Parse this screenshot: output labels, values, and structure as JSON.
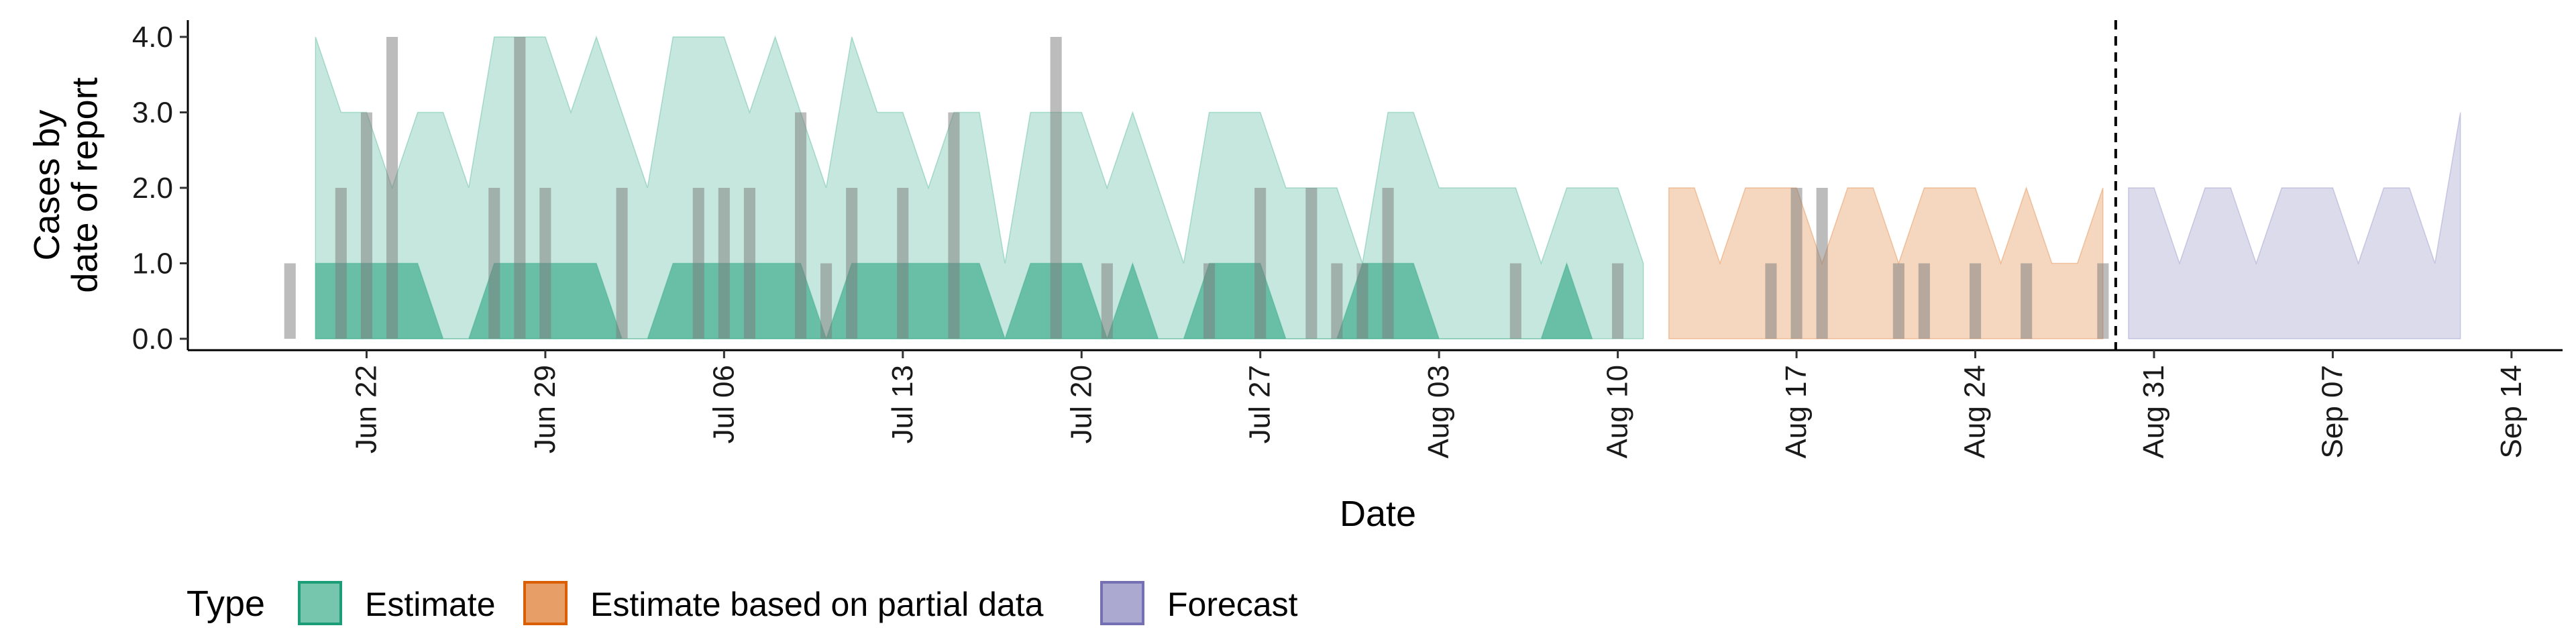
{
  "chart_data": {
    "type": "area",
    "xlabel": "Date",
    "ylabel_lines": [
      "Cases by",
      "date of report"
    ],
    "y_ticks": [
      "0.0",
      "1.0",
      "2.0",
      "3.0",
      "4.0"
    ],
    "ylim": [
      0,
      4
    ],
    "x_tick_labels": [
      "Jun 22",
      "Jun 29",
      "Jul 06",
      "Jul 13",
      "Jul 20",
      "Jul 27",
      "Aug 03",
      "Aug 10",
      "Aug 17",
      "Aug 24",
      "Aug 31",
      "Sep 07",
      "Sep 14"
    ],
    "x_tick_dates": [
      "2020-06-22",
      "2020-06-29",
      "2020-07-06",
      "2020-07-13",
      "2020-07-20",
      "2020-07-27",
      "2020-08-03",
      "2020-08-10",
      "2020-08-17",
      "2020-08-24",
      "2020-08-31",
      "2020-09-07",
      "2020-09-14"
    ],
    "xlim": [
      "2020-06-15",
      "2020-09-16"
    ],
    "forecast_start": "2020-08-29",
    "legend": {
      "title": "Type",
      "items": [
        {
          "label": "Estimate",
          "color": "#1b9e77"
        },
        {
          "label": "Estimate based on partial data",
          "color": "#d95f02"
        },
        {
          "label": "Forecast",
          "color": "#7570b3"
        }
      ]
    },
    "colors": {
      "estimate": "#1b9e77",
      "partial": "#d95f02",
      "forecast": "#7570b3",
      "bars": "#7a7a7a"
    },
    "observed_dates": [
      "2020-06-19",
      "2020-06-20",
      "2020-06-21",
      "2020-06-22",
      "2020-06-23",
      "2020-06-24",
      "2020-06-25",
      "2020-06-26",
      "2020-06-27",
      "2020-06-28",
      "2020-06-29",
      "2020-06-30",
      "2020-07-01",
      "2020-07-02",
      "2020-07-03",
      "2020-07-04",
      "2020-07-05",
      "2020-07-06",
      "2020-07-07",
      "2020-07-08",
      "2020-07-09",
      "2020-07-10",
      "2020-07-11",
      "2020-07-12",
      "2020-07-13",
      "2020-07-14",
      "2020-07-15",
      "2020-07-16",
      "2020-07-17",
      "2020-07-18",
      "2020-07-19",
      "2020-07-20",
      "2020-07-21",
      "2020-07-22",
      "2020-07-23",
      "2020-07-24",
      "2020-07-25",
      "2020-07-26",
      "2020-07-27",
      "2020-07-28",
      "2020-07-29",
      "2020-07-30",
      "2020-07-31",
      "2020-08-01",
      "2020-08-02",
      "2020-08-03",
      "2020-08-04",
      "2020-08-05",
      "2020-08-06",
      "2020-08-07",
      "2020-08-08",
      "2020-08-09",
      "2020-08-10",
      "2020-08-11",
      "2020-08-12",
      "2020-08-13",
      "2020-08-14",
      "2020-08-15",
      "2020-08-16",
      "2020-08-17",
      "2020-08-18",
      "2020-08-19",
      "2020-08-20",
      "2020-08-21",
      "2020-08-22",
      "2020-08-23",
      "2020-08-24",
      "2020-08-25",
      "2020-08-26",
      "2020-08-27",
      "2020-08-28",
      "2020-08-29"
    ],
    "observed_cases": [
      1,
      0,
      2,
      3,
      4,
      0,
      0,
      0,
      2,
      4,
      2,
      0,
      0,
      2,
      0,
      0,
      2,
      2,
      2,
      0,
      3,
      1,
      2,
      0,
      2,
      0,
      3,
      0,
      0,
      0,
      4,
      0,
      1,
      0,
      0,
      0,
      1,
      0,
      2,
      0,
      2,
      1,
      1,
      2,
      0,
      0,
      0,
      0,
      1,
      0,
      0,
      0,
      1,
      0,
      0,
      0,
      0,
      0,
      1,
      2,
      2,
      0,
      0,
      1,
      1,
      0,
      1,
      0,
      1,
      0,
      0,
      1
    ],
    "series": [
      {
        "name": "Estimate",
        "type_key": "estimate",
        "band": "outer",
        "x": [
          "2020-06-20",
          "2020-06-21",
          "2020-06-22",
          "2020-06-23",
          "2020-06-24",
          "2020-06-25",
          "2020-06-26",
          "2020-06-27",
          "2020-06-28",
          "2020-06-29",
          "2020-06-30",
          "2020-07-01",
          "2020-07-02",
          "2020-07-03",
          "2020-07-04",
          "2020-07-05",
          "2020-07-06",
          "2020-07-07",
          "2020-07-08",
          "2020-07-09",
          "2020-07-10",
          "2020-07-11",
          "2020-07-12",
          "2020-07-13",
          "2020-07-14",
          "2020-07-15",
          "2020-07-16",
          "2020-07-17",
          "2020-07-18",
          "2020-07-19",
          "2020-07-20",
          "2020-07-21",
          "2020-07-22",
          "2020-07-23",
          "2020-07-24",
          "2020-07-25",
          "2020-07-26",
          "2020-07-27",
          "2020-07-28",
          "2020-07-29",
          "2020-07-30",
          "2020-07-31",
          "2020-08-01",
          "2020-08-02",
          "2020-08-03",
          "2020-08-04",
          "2020-08-05",
          "2020-08-06",
          "2020-08-07",
          "2020-08-08",
          "2020-08-09",
          "2020-08-10",
          "2020-08-11"
        ],
        "upper": [
          4,
          3,
          3,
          2,
          3,
          3,
          2,
          4,
          4,
          4,
          3,
          4,
          3,
          2,
          4,
          4,
          4,
          3,
          4,
          3,
          2,
          4,
          3,
          3,
          2,
          3,
          3,
          1,
          3,
          3,
          3,
          2,
          3,
          2,
          1,
          3,
          3,
          3,
          2,
          2,
          2,
          1,
          3,
          3,
          2,
          2,
          2,
          2,
          1,
          2,
          2,
          2,
          1
        ],
        "lower": [
          0,
          0,
          0,
          0,
          0,
          0,
          0,
          0,
          0,
          0,
          0,
          0,
          0,
          0,
          0,
          0,
          0,
          0,
          0,
          0,
          0,
          0,
          0,
          0,
          0,
          0,
          0,
          0,
          0,
          0,
          0,
          0,
          0,
          0,
          0,
          0,
          0,
          0,
          0,
          0,
          0,
          0,
          0,
          0,
          0,
          0,
          0,
          0,
          0,
          0,
          0,
          0,
          0
        ]
      },
      {
        "name": "Estimate",
        "type_key": "estimate",
        "band": "inner",
        "x": [
          "2020-06-20",
          "2020-06-21",
          "2020-06-22",
          "2020-06-23",
          "2020-06-24",
          "2020-06-25",
          "2020-06-26",
          "2020-06-27",
          "2020-06-28",
          "2020-06-29",
          "2020-06-30",
          "2020-07-01",
          "2020-07-02",
          "2020-07-03",
          "2020-07-04",
          "2020-07-05",
          "2020-07-06",
          "2020-07-07",
          "2020-07-08",
          "2020-07-09",
          "2020-07-10",
          "2020-07-11",
          "2020-07-12",
          "2020-07-13",
          "2020-07-14",
          "2020-07-15",
          "2020-07-16",
          "2020-07-17",
          "2020-07-18",
          "2020-07-19",
          "2020-07-20",
          "2020-07-21",
          "2020-07-22",
          "2020-07-23",
          "2020-07-24",
          "2020-07-25",
          "2020-07-26",
          "2020-07-27",
          "2020-07-28",
          "2020-07-29",
          "2020-07-30",
          "2020-07-31",
          "2020-08-01",
          "2020-08-02",
          "2020-08-03",
          "2020-08-04",
          "2020-08-05",
          "2020-08-06",
          "2020-08-07",
          "2020-08-08",
          "2020-08-09"
        ],
        "upper": [
          1,
          1,
          1,
          1,
          1,
          0,
          0,
          1,
          1,
          1,
          1,
          1,
          0,
          0,
          1,
          1,
          1,
          1,
          1,
          1,
          0,
          1,
          1,
          1,
          1,
          1,
          1,
          0,
          1,
          1,
          1,
          0,
          1,
          0,
          0,
          1,
          1,
          1,
          0,
          0,
          0,
          1,
          1,
          1,
          0,
          0,
          0,
          0,
          0,
          1,
          0
        ],
        "lower": [
          0,
          0,
          0,
          0,
          0,
          0,
          0,
          0,
          0,
          0,
          0,
          0,
          0,
          0,
          0,
          0,
          0,
          0,
          0,
          0,
          0,
          0,
          0,
          0,
          0,
          0,
          0,
          0,
          0,
          0,
          0,
          0,
          0,
          0,
          0,
          0,
          0,
          0,
          0,
          0,
          0,
          0,
          0,
          0,
          0,
          0,
          0,
          0,
          0,
          0,
          0
        ]
      },
      {
        "name": "Estimate based on partial data",
        "type_key": "partial",
        "band": "outer",
        "x": [
          "2020-08-12",
          "2020-08-13",
          "2020-08-14",
          "2020-08-15",
          "2020-08-16",
          "2020-08-17",
          "2020-08-18",
          "2020-08-19",
          "2020-08-20",
          "2020-08-21",
          "2020-08-22",
          "2020-08-23",
          "2020-08-24",
          "2020-08-25",
          "2020-08-26",
          "2020-08-27",
          "2020-08-28",
          "2020-08-29"
        ],
        "upper": [
          2,
          2,
          1,
          2,
          2,
          2,
          1,
          2,
          2,
          1,
          2,
          2,
          2,
          1,
          2,
          1,
          1,
          2
        ],
        "lower": [
          0,
          0,
          0,
          0,
          0,
          0,
          0,
          0,
          0,
          0,
          0,
          0,
          0,
          0,
          0,
          0,
          0,
          0
        ]
      },
      {
        "name": "Forecast",
        "type_key": "forecast",
        "band": "outer",
        "x": [
          "2020-08-30",
          "2020-08-31",
          "2020-09-01",
          "2020-09-02",
          "2020-09-03",
          "2020-09-04",
          "2020-09-05",
          "2020-09-06",
          "2020-09-07",
          "2020-09-08",
          "2020-09-09",
          "2020-09-10",
          "2020-09-11",
          "2020-09-12"
        ],
        "upper": [
          2,
          2,
          1,
          2,
          2,
          1,
          2,
          2,
          2,
          1,
          2,
          2,
          1,
          3
        ],
        "lower": [
          0,
          0,
          0,
          0,
          0,
          0,
          0,
          0,
          0,
          0,
          0,
          0,
          0,
          0
        ]
      }
    ]
  }
}
